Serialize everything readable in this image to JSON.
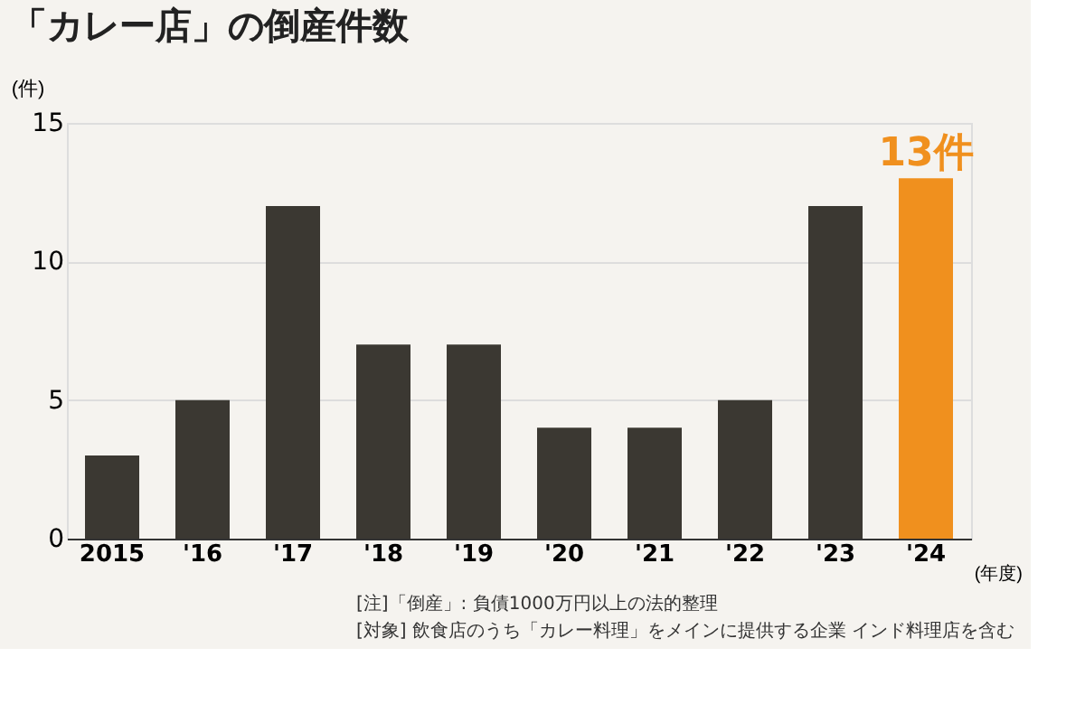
{
  "chart_data": {
    "type": "bar",
    "title": "「カレー店」の倒産件数",
    "categories": [
      "2015",
      "'16",
      "'17",
      "'18",
      "'19",
      "'20",
      "'21",
      "'22",
      "'23",
      "'24"
    ],
    "values": [
      3,
      5,
      12,
      7,
      7,
      4,
      4,
      5,
      12,
      13
    ],
    "colors": [
      "#3b3832",
      "#3b3832",
      "#3b3832",
      "#3b3832",
      "#3b3832",
      "#3b3832",
      "#3b3832",
      "#3b3832",
      "#3b3832",
      "#f0901e"
    ],
    "value_labels": [
      null,
      null,
      null,
      null,
      null,
      null,
      null,
      null,
      null,
      "13件"
    ],
    "ylabel": "(件)",
    "xlabel": "(年度)",
    "ylim": [
      0,
      15
    ],
    "yticks": [
      0,
      5,
      10,
      15
    ],
    "grid": "y",
    "annotations": [
      "[注]「倒産」: 負債1000万円以上の法的整理",
      "[対象] 飲食店のうち「カレー料理」をメインに提供する企業 インド料理店を含む"
    ]
  }
}
